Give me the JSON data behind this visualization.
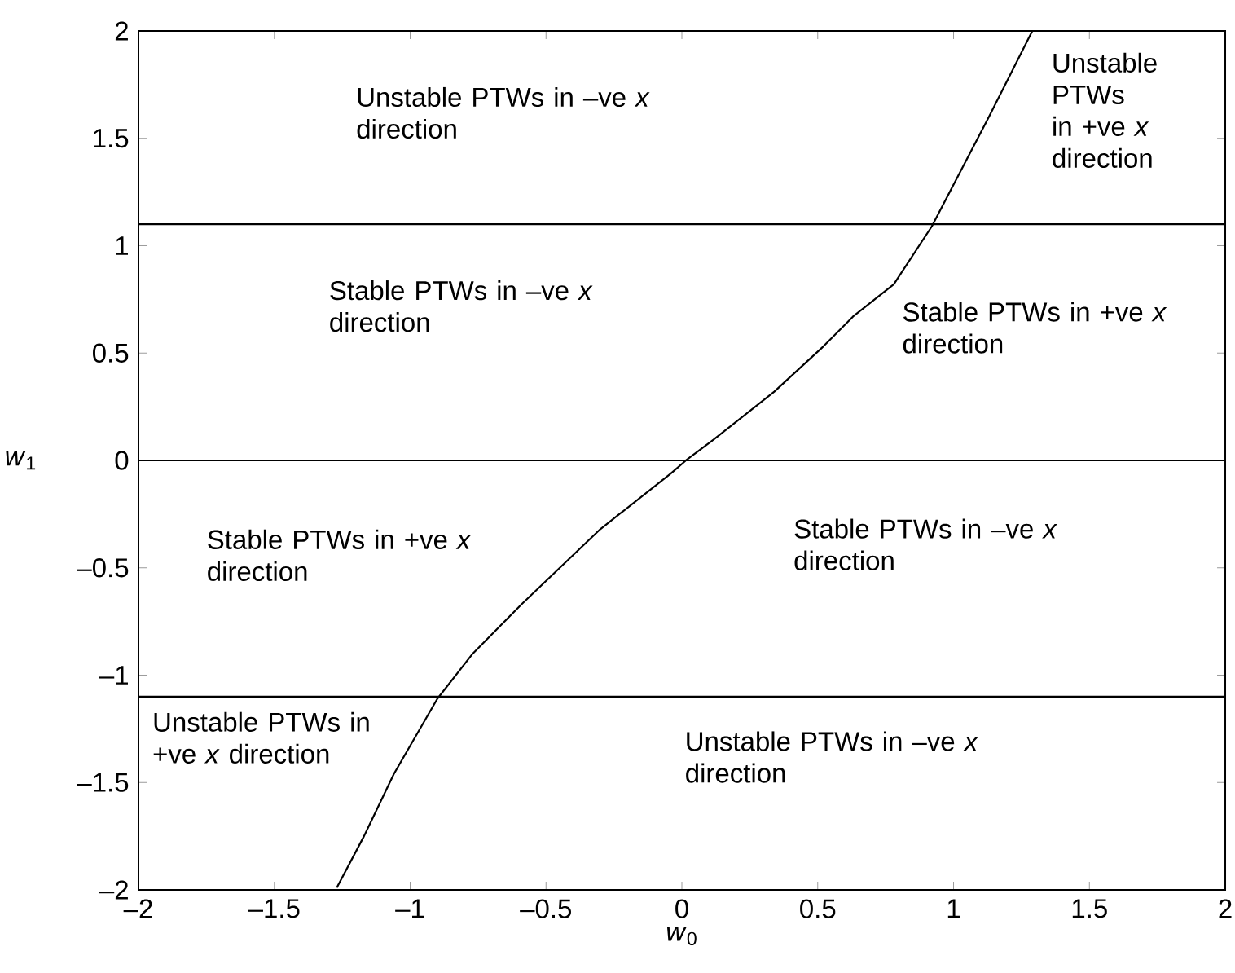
{
  "chart_data": {
    "type": "line",
    "xlabel": "*w*$_{0}$",
    "ylabel": "*w*$_{1}$",
    "xlim": [
      -2,
      2
    ],
    "ylim": [
      -2,
      2
    ],
    "xticks": [
      {
        "value": -2,
        "label": "–2"
      },
      {
        "value": -1.5,
        "label": "–1.5"
      },
      {
        "value": -1,
        "label": "–1"
      },
      {
        "value": -0.5,
        "label": "–0.5"
      },
      0,
      0.5,
      1,
      1.5,
      2
    ],
    "yticks": [
      {
        "value": -2,
        "label": "–2"
      },
      {
        "value": -1.5,
        "label": "–1.5"
      },
      {
        "value": -1,
        "label": "–1"
      },
      {
        "value": -0.5,
        "label": "–0.5"
      },
      0,
      0.5,
      1,
      1.5,
      2
    ],
    "marker": "none",
    "line_style": "solid",
    "series": [
      {
        "color": "#000000",
        "x": [
          -1.27,
          -1.17,
          -1.06,
          -0.9,
          -0.77,
          -0.59,
          -0.3,
          -0.04,
          0.015,
          0.12,
          0.34,
          0.52,
          0.63,
          0.78,
          0.92,
          1.13,
          1.29
        ],
        "values": [
          -1.99,
          -1.75,
          -1.46,
          -1.11,
          -0.9,
          -0.67,
          -0.32,
          -0.06,
          0,
          0.1,
          0.32,
          0.53,
          0.67,
          0.82,
          1.09,
          1.6,
          2
        ]
      }
    ],
    "ref_lines": [
      {
        "axis": "y",
        "value": 1.1,
        "color": "#000000"
      },
      {
        "axis": "y",
        "value": 0,
        "color": "#000000"
      },
      {
        "axis": "y",
        "value": -1.1,
        "color": "#000000"
      }
    ],
    "annotations": [
      "Unstable PTWs in –ve *x* direction",
      "Unstable PTWs in +ve *x* direction",
      "Stable PTWs in –ve *x* direction",
      "Stable PTWs in +ve *x* direction",
      "Stable PTWs in +ve *x* direction",
      "Stable PTWs in –ve *x* direction",
      "Unstable PTWs in +ve *x* direction",
      "Unstable PTWs in –ve *x* direction"
    ]
  }
}
